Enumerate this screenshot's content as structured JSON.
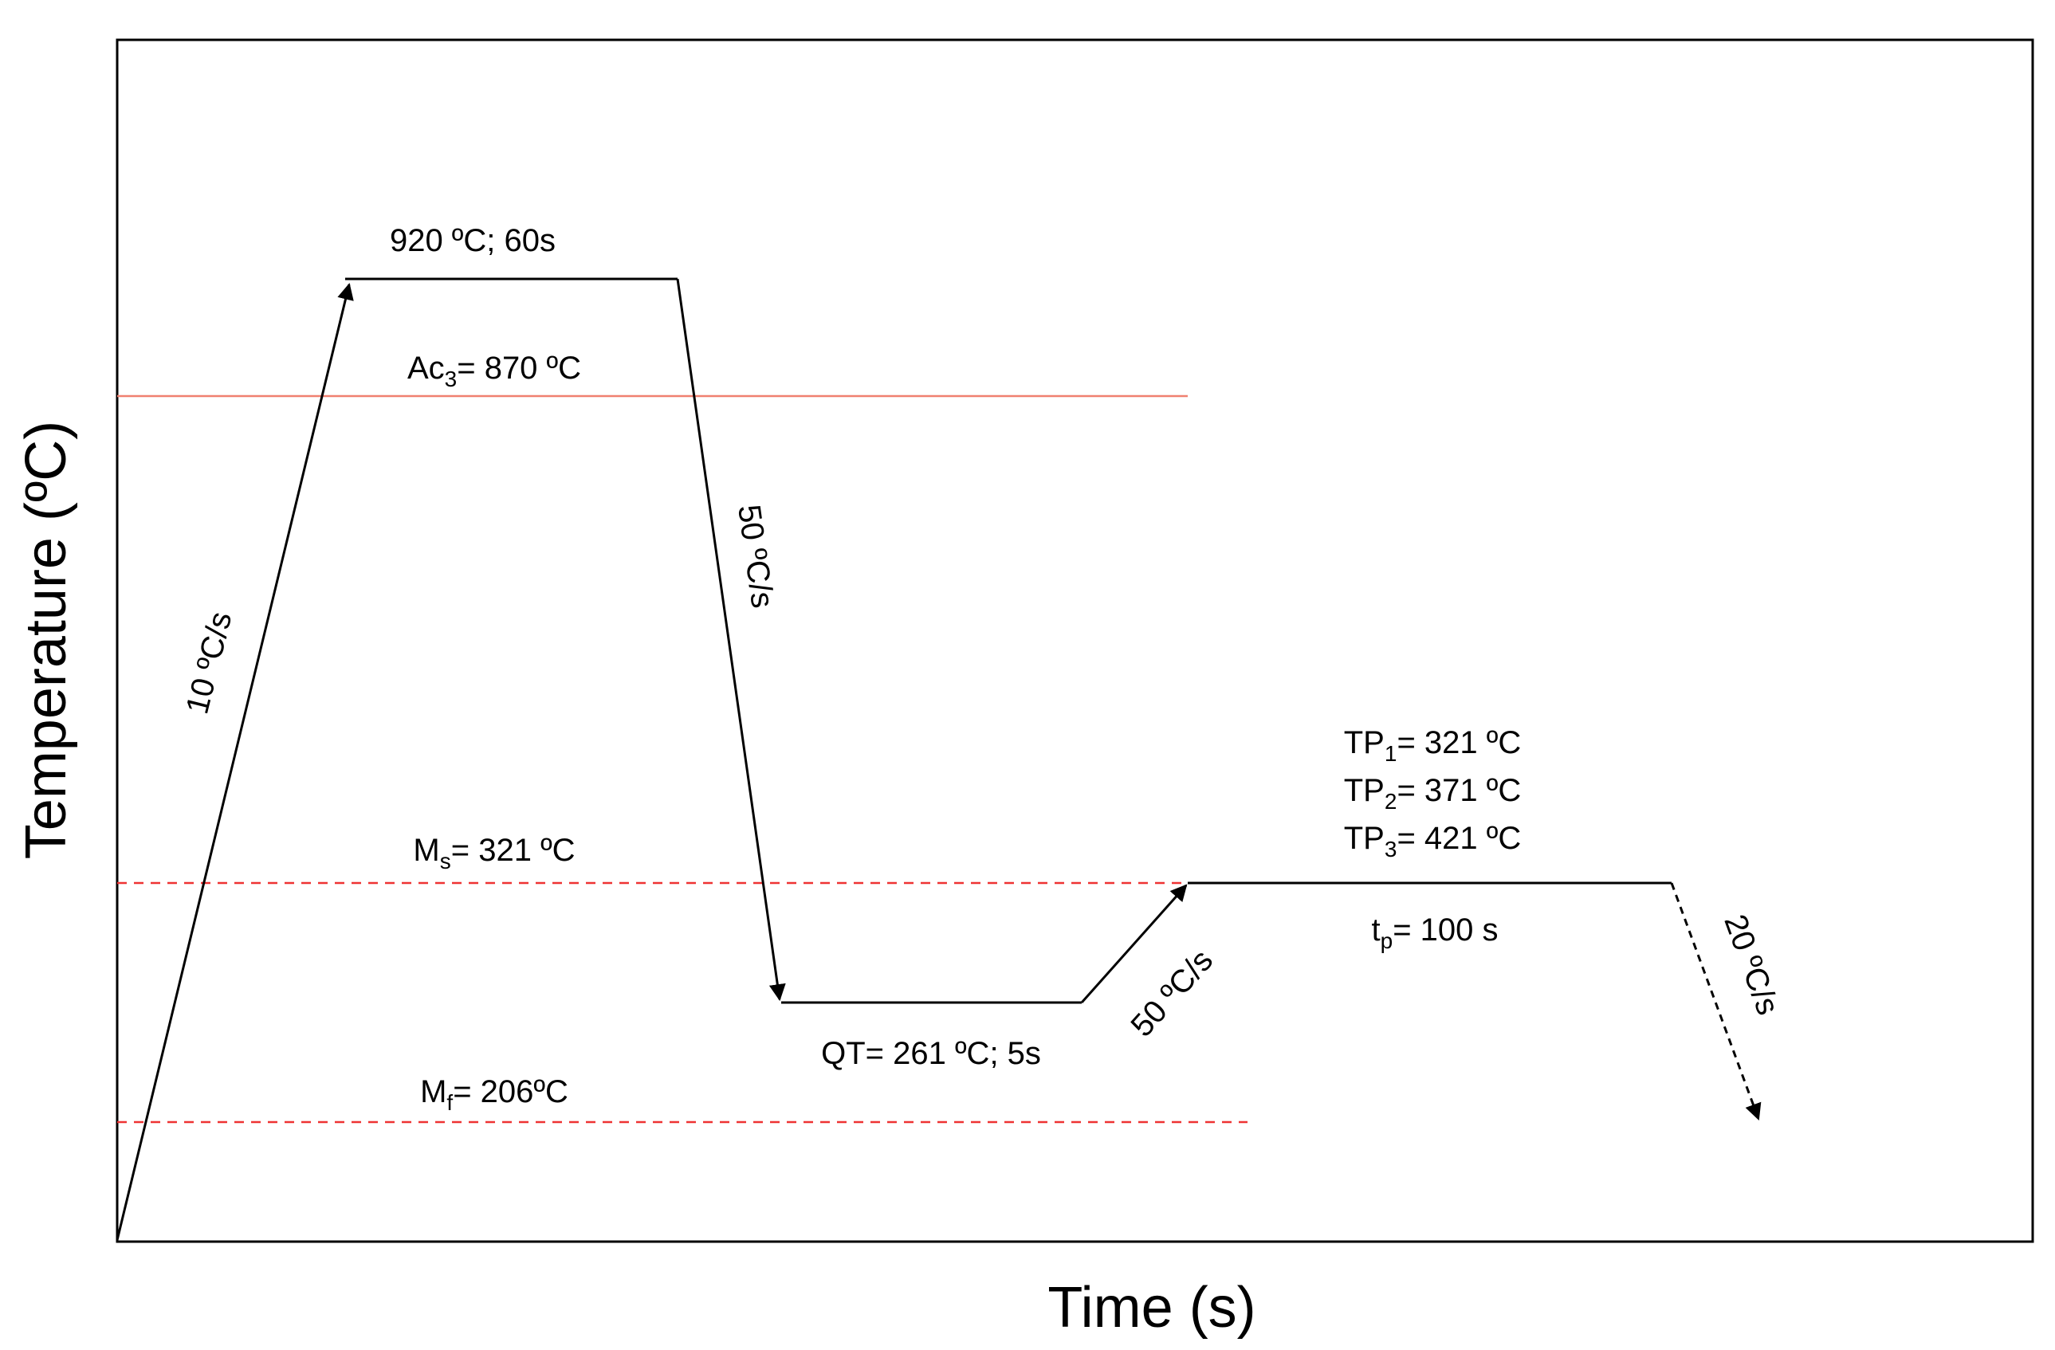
{
  "axes": {
    "x_title": "Time (s)",
    "y_title": "Temperature (ºC)"
  },
  "colors": {
    "curve": "#000000",
    "ac3_line": "#f08070",
    "ms_mf_lines": "#ee3333",
    "frame": "#000000"
  },
  "labels": {
    "austenitize": "920 ºC; 60s",
    "ac3": {
      "main": "Ac",
      "sub": "3",
      "rest": "= 870 ºC"
    },
    "ms": {
      "main": "M",
      "sub": "s",
      "rest": "= 321 ºC"
    },
    "mf": {
      "main": "M",
      "sub": "f",
      "rest": "= 206ºC"
    },
    "heating_rate": "10 ºC/s",
    "quench_rate": "50 ºC/s",
    "reheat_rate": "50 ºC/s",
    "final_cool_rate": "20 ºC/s",
    "qt": "QT= 261 ºC; 5s",
    "tp1": {
      "main": "TP",
      "sub": "1",
      "rest": "= 321 ºC"
    },
    "tp2": {
      "main": "TP",
      "sub": "2",
      "rest": "= 371 ºC"
    },
    "tp3": {
      "main": "TP",
      "sub": "3",
      "rest": "= 421 ºC"
    },
    "tp_time": {
      "main": "t",
      "sub": "p",
      "rest": "= 100 s"
    }
  }
}
